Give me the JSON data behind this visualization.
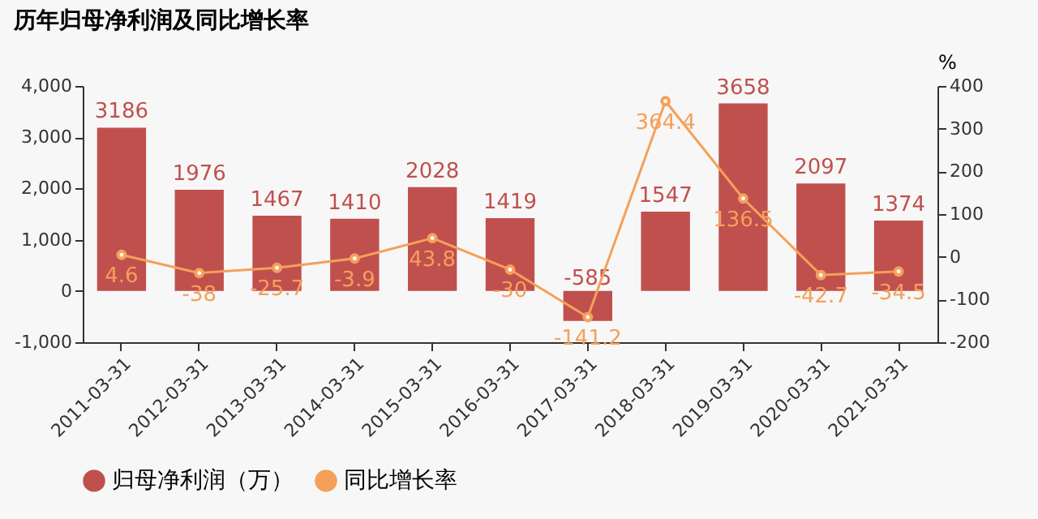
{
  "chart_data": {
    "type": "bar",
    "title": "历年归母净利润及同比增长率",
    "y2label": "%",
    "categories": [
      "2011-03-31",
      "2012-03-31",
      "2013-03-31",
      "2014-03-31",
      "2015-03-31",
      "2016-03-31",
      "2017-03-31",
      "2018-03-31",
      "2019-03-31",
      "2020-03-31",
      "2021-03-31"
    ],
    "series": [
      {
        "name": "归母净利润（万）",
        "color": "#c0504d",
        "values": [
          3186,
          1976,
          1467,
          1410,
          2028,
          1419,
          -585,
          1547,
          3658,
          2097,
          1374
        ]
      },
      {
        "name": "同比增长率",
        "type": "line",
        "axis": "y2",
        "color": "#f5a05a",
        "values": [
          4.6,
          -38,
          -25.7,
          -3.9,
          43.8,
          -30,
          -141.2,
          364.4,
          136.5,
          -42.7,
          -34.5
        ]
      }
    ],
    "ylim": [
      -1000,
      4000
    ],
    "yticks": [
      {
        "value": -1000,
        "label": "-1,000"
      },
      0,
      {
        "value": 1000,
        "label": "1,000"
      },
      {
        "value": 2000,
        "label": "2,000"
      },
      {
        "value": 3000,
        "label": "3,000"
      },
      {
        "value": 4000,
        "label": "4,000"
      }
    ],
    "y2lim": [
      -200,
      400
    ],
    "y2ticks": [
      -200,
      -100,
      0,
      100,
      200,
      300,
      400
    ],
    "data_labels": true,
    "legend": "bottom",
    "marker": "circle",
    "grid": false
  }
}
